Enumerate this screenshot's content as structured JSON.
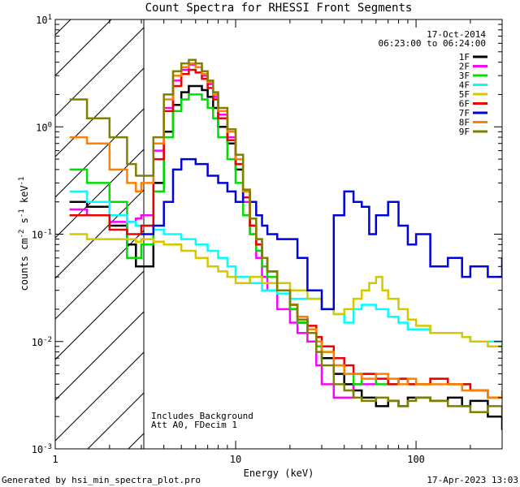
{
  "chart_data": {
    "type": "line",
    "title": "Count Spectra for RHESSI Front Segments",
    "xlabel": "Energy (keV)",
    "ylabel": "counts cm",
    "ylabel_sup1": "-2",
    "ylabel_mid": " s",
    "ylabel_sup2": "-1",
    "ylabel_end": " keV",
    "ylabel_sup3": "-1",
    "xscale": "log",
    "yscale": "log",
    "xlim": [
      1,
      300
    ],
    "ylim": [
      0.001,
      10
    ],
    "x_ticks": [
      {
        "v": 1,
        "l": "1"
      },
      {
        "v": 10,
        "l": "10"
      },
      {
        "v": 100,
        "l": "100"
      }
    ],
    "y_ticks": [
      {
        "v": 0.001,
        "b": "10",
        "e": "-3"
      },
      {
        "v": 0.01,
        "b": "10",
        "e": "-2"
      },
      {
        "v": 0.1,
        "b": "10",
        "e": "-1"
      },
      {
        "v": 1,
        "b": "10",
        "e": "0"
      },
      {
        "v": 10,
        "b": "10",
        "e": "1"
      }
    ],
    "hatched_region": {
      "from": 1,
      "to": 3
    },
    "date": "17-Oct-2014",
    "time_range": "06:23:00 to 06:24:00",
    "annotation_1": "Includes Background",
    "annotation_2": "Att A0, FDecim 1",
    "series": [
      {
        "name": "1F",
        "color": "#000000",
        "x": [
          1.2,
          1.5,
          2.0,
          2.5,
          2.8,
          3.0,
          3.5,
          4.0,
          4.5,
          5.0,
          5.5,
          6.0,
          6.5,
          7.0,
          7.5,
          8.0,
          9.0,
          10,
          11,
          12,
          13,
          14,
          15,
          17,
          20,
          22,
          25,
          28,
          30,
          35,
          40,
          45,
          50,
          60,
          70,
          80,
          90,
          100,
          120,
          150,
          180,
          200,
          250,
          300
        ],
        "y": [
          0.2,
          0.18,
          0.12,
          0.08,
          0.05,
          0.05,
          0.3,
          0.9,
          1.6,
          2.1,
          2.4,
          2.4,
          2.2,
          1.9,
          1.5,
          1.0,
          0.7,
          0.4,
          0.2,
          0.12,
          0.08,
          0.06,
          0.045,
          0.03,
          0.02,
          0.015,
          0.012,
          0.009,
          0.007,
          0.005,
          0.004,
          0.0035,
          0.003,
          0.0025,
          0.0028,
          0.0025,
          0.003,
          0.003,
          0.0028,
          0.003,
          0.0025,
          0.0028,
          0.002,
          0.0015
        ]
      },
      {
        "name": "2F",
        "color": "#ff00ff",
        "x": [
          1.2,
          1.5,
          2.0,
          2.5,
          2.8,
          3.0,
          3.5,
          4.0,
          4.5,
          5.0,
          5.5,
          6.0,
          6.5,
          7.0,
          7.5,
          8.0,
          9.0,
          10,
          11,
          12,
          13,
          14,
          15,
          17,
          20,
          22,
          25,
          28,
          30,
          35,
          40,
          45,
          50,
          60
        ],
        "y": [
          0.17,
          0.15,
          0.13,
          0.13,
          0.14,
          0.15,
          0.6,
          1.5,
          2.7,
          3.4,
          3.8,
          3.6,
          3.0,
          2.5,
          1.9,
          1.3,
          0.8,
          0.45,
          0.2,
          0.1,
          0.06,
          0.04,
          0.03,
          0.02,
          0.015,
          0.012,
          0.01,
          0.006,
          0.004,
          0.003,
          0.003,
          0.004,
          0.004,
          0.005
        ]
      },
      {
        "name": "3F",
        "color": "#00dd00",
        "x": [
          1.2,
          1.5,
          2.0,
          2.5,
          2.8,
          3.0,
          3.5,
          4.0,
          4.5,
          5.0,
          5.5,
          6.0,
          6.5,
          7.0,
          7.5,
          8.0,
          9.0,
          10,
          11,
          12,
          13,
          14,
          15,
          17,
          20,
          22,
          25,
          28,
          30,
          35,
          40,
          45,
          50,
          60,
          70,
          80,
          90,
          100,
          120,
          150,
          180,
          200,
          250,
          300
        ],
        "y": [
          0.4,
          0.3,
          0.2,
          0.06,
          0.06,
          0.08,
          0.25,
          0.8,
          1.4,
          1.8,
          2.0,
          2.0,
          1.8,
          1.5,
          1.2,
          0.8,
          0.5,
          0.3,
          0.15,
          0.1,
          0.07,
          0.05,
          0.04,
          0.03,
          0.02,
          0.015,
          0.012,
          0.009,
          0.008,
          0.006,
          0.005,
          0.004,
          0.005,
          0.004,
          0.004,
          0.0045,
          0.004,
          0.004,
          0.0045,
          0.004,
          0.004,
          0.0035,
          0.003,
          0.003
        ]
      },
      {
        "name": "4F",
        "color": "#00ffff",
        "x": [
          1.2,
          1.5,
          2.0,
          2.5,
          2.8,
          3.0,
          3.5,
          4.0,
          5.0,
          6.0,
          7.0,
          8.0,
          9.0,
          10,
          12,
          14,
          17,
          20,
          25,
          30,
          35,
          40,
          45,
          50,
          60,
          70,
          80,
          90,
          100,
          120,
          150,
          180,
          200,
          250,
          300
        ],
        "y": [
          0.25,
          0.2,
          0.15,
          0.13,
          0.12,
          0.12,
          0.11,
          0.1,
          0.09,
          0.08,
          0.07,
          0.06,
          0.05,
          0.04,
          0.035,
          0.03,
          0.028,
          0.025,
          0.025,
          0.02,
          0.018,
          0.015,
          0.02,
          0.022,
          0.02,
          0.017,
          0.015,
          0.013,
          0.013,
          0.012,
          0.012,
          0.011,
          0.01,
          0.01,
          0.008
        ]
      },
      {
        "name": "5F",
        "color": "#d4c800",
        "x": [
          1.2,
          1.5,
          2.0,
          2.5,
          2.8,
          3.0,
          3.5,
          4.0,
          5.0,
          6.0,
          7.0,
          8.0,
          9.0,
          10,
          12,
          14,
          17,
          20,
          25,
          30,
          35,
          40,
          45,
          50,
          55,
          60,
          65,
          70,
          80,
          90,
          100,
          120,
          150,
          180,
          200,
          250,
          300
        ],
        "y": [
          0.1,
          0.09,
          0.09,
          0.09,
          0.085,
          0.09,
          0.085,
          0.08,
          0.07,
          0.06,
          0.05,
          0.045,
          0.04,
          0.035,
          0.04,
          0.035,
          0.035,
          0.03,
          0.025,
          0.02,
          0.018,
          0.02,
          0.025,
          0.03,
          0.035,
          0.04,
          0.03,
          0.025,
          0.02,
          0.016,
          0.014,
          0.012,
          0.012,
          0.011,
          0.01,
          0.009,
          0.008
        ]
      },
      {
        "name": "6F",
        "color": "#ee0000",
        "x": [
          1.2,
          1.5,
          2.0,
          2.5,
          2.8,
          3.0,
          3.5,
          4.0,
          4.5,
          5.0,
          5.5,
          6.0,
          6.5,
          7.0,
          7.5,
          8.0,
          9.0,
          10,
          11,
          12,
          13,
          14,
          15,
          17,
          20,
          22,
          25,
          28,
          30,
          35,
          40,
          45,
          50,
          60,
          70,
          80,
          90,
          100,
          120,
          150,
          180,
          200,
          250,
          300
        ],
        "y": [
          0.15,
          0.15,
          0.11,
          0.1,
          0.1,
          0.12,
          0.5,
          1.4,
          2.4,
          3.1,
          3.4,
          3.2,
          2.8,
          2.3,
          1.8,
          1.2,
          0.75,
          0.45,
          0.22,
          0.12,
          0.08,
          0.06,
          0.045,
          0.03,
          0.022,
          0.017,
          0.014,
          0.011,
          0.009,
          0.007,
          0.006,
          0.005,
          0.005,
          0.0045,
          0.004,
          0.0045,
          0.004,
          0.004,
          0.0045,
          0.004,
          0.004,
          0.0035,
          0.003,
          0.003
        ]
      },
      {
        "name": "7F",
        "color": "#0000dd",
        "x": [
          3.0,
          3.5,
          4.0,
          4.5,
          5.0,
          6.0,
          7.0,
          8.0,
          9.0,
          10,
          11,
          12,
          13,
          14,
          15,
          17,
          20,
          22,
          25,
          30,
          35,
          40,
          45,
          50,
          55,
          60,
          70,
          80,
          90,
          100,
          120,
          150,
          180,
          200,
          250,
          300
        ],
        "y": [
          0.1,
          0.12,
          0.2,
          0.4,
          0.5,
          0.45,
          0.35,
          0.3,
          0.25,
          0.2,
          0.25,
          0.2,
          0.15,
          0.12,
          0.1,
          0.09,
          0.09,
          0.06,
          0.03,
          0.02,
          0.15,
          0.25,
          0.2,
          0.18,
          0.1,
          0.15,
          0.2,
          0.12,
          0.08,
          0.1,
          0.05,
          0.06,
          0.04,
          0.05,
          0.04,
          0.06
        ]
      },
      {
        "name": "8F",
        "color": "#ff8000",
        "x": [
          1.2,
          1.5,
          2.0,
          2.5,
          2.8,
          3.0,
          3.5,
          4.0,
          4.5,
          5.0,
          5.5,
          6.0,
          6.5,
          7.0,
          7.5,
          8.0,
          9.0,
          10,
          11,
          12,
          13,
          14,
          15,
          17,
          20,
          22,
          25,
          28,
          30,
          35,
          40,
          45,
          50,
          60,
          70,
          80,
          90,
          100,
          120,
          150,
          180,
          200,
          250,
          300
        ],
        "y": [
          0.8,
          0.7,
          0.4,
          0.3,
          0.25,
          0.3,
          0.7,
          1.8,
          3.0,
          3.6,
          3.9,
          3.6,
          3.1,
          2.6,
          2.0,
          1.4,
          0.9,
          0.5,
          0.25,
          0.14,
          0.09,
          0.06,
          0.045,
          0.03,
          0.022,
          0.017,
          0.013,
          0.01,
          0.008,
          0.006,
          0.005,
          0.005,
          0.0045,
          0.005,
          0.0045,
          0.004,
          0.0045,
          0.004,
          0.004,
          0.004,
          0.0035,
          0.0035,
          0.003,
          0.0035
        ]
      },
      {
        "name": "9F",
        "color": "#808000",
        "x": [
          1.2,
          1.5,
          2.0,
          2.5,
          2.8,
          3.0,
          3.5,
          4.0,
          4.5,
          5.0,
          5.5,
          6.0,
          6.5,
          7.0,
          7.5,
          8.0,
          9.0,
          10,
          11,
          12,
          13,
          14,
          15,
          17,
          20,
          22,
          25,
          28,
          30,
          35,
          40,
          45,
          50,
          60,
          70,
          80,
          90,
          100,
          120,
          150,
          180,
          200,
          250,
          300
        ],
        "y": [
          1.8,
          1.2,
          0.8,
          0.45,
          0.35,
          0.35,
          0.8,
          2.0,
          3.3,
          3.9,
          4.2,
          3.9,
          3.3,
          2.7,
          2.1,
          1.5,
          0.95,
          0.55,
          0.26,
          0.14,
          0.09,
          0.06,
          0.045,
          0.03,
          0.022,
          0.016,
          0.012,
          0.008,
          0.006,
          0.004,
          0.0035,
          0.003,
          0.0028,
          0.003,
          0.0028,
          0.0025,
          0.0028,
          0.003,
          0.0028,
          0.0025,
          0.0025,
          0.0022,
          0.0025,
          0.002
        ]
      }
    ]
  },
  "footer": {
    "generated_by": "Generated by hsi_min_spectra_plot.pro",
    "timestamp": "17-Apr-2023 13:03"
  }
}
